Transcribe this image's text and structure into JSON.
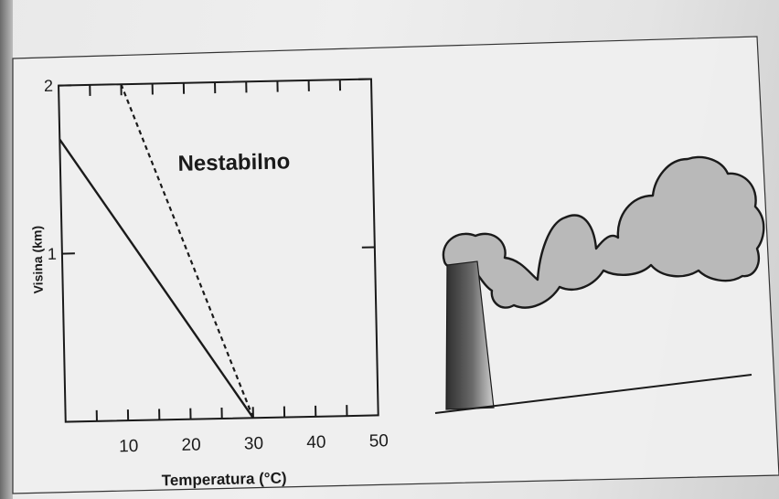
{
  "chart_data": {
    "type": "line",
    "title": "Nestabilno",
    "xlabel": "Temperatura (°C)",
    "ylabel": "Visina (km)",
    "xlim": [
      0,
      50
    ],
    "ylim": [
      0,
      2
    ],
    "x_ticks": [
      10,
      20,
      30,
      40,
      50
    ],
    "y_ticks": [
      1,
      2
    ],
    "grid": false,
    "series": [
      {
        "style": "solid",
        "points": [
          [
            0,
            1.68
          ],
          [
            30,
            0
          ]
        ]
      },
      {
        "style": "dashed",
        "points": [
          [
            10,
            2
          ],
          [
            30,
            0
          ]
        ]
      }
    ]
  },
  "illustration": {
    "subject": "smokestack-with-plume"
  },
  "colors": {
    "ink": "#1a1a1a",
    "smoke": "#b9b9b9",
    "chimney_dark": "#333333",
    "chimney_light": "#c8c8c8"
  }
}
